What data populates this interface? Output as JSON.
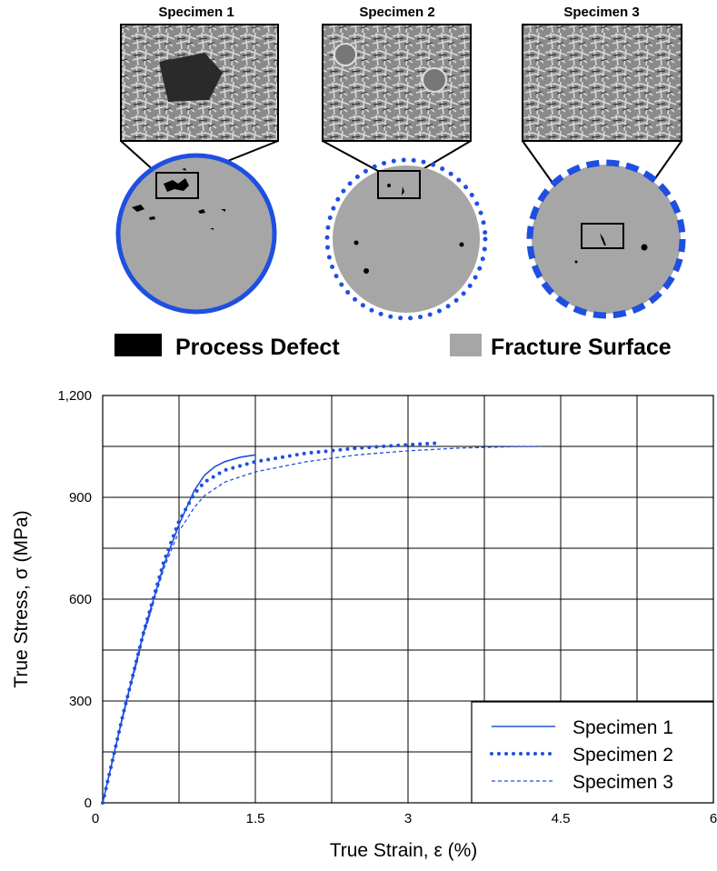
{
  "figure": {
    "specimens": [
      "Specimen 1",
      "Specimen 2",
      "Specimen 3"
    ],
    "legend": [
      "Process Defect",
      "Fracture Surface"
    ]
  },
  "chart_data": {
    "type": "line",
    "xlabel": "True Strain, ε (%)",
    "ylabel": "True Stress, σ (MPa)",
    "xlim": [
      0,
      6
    ],
    "ylim": [
      0,
      1200
    ],
    "xticks": [
      0,
      1.5,
      3,
      4.5,
      6
    ],
    "yticks": [
      0,
      300,
      600,
      900,
      {
        "value": 1200,
        "label": "1,200"
      }
    ],
    "x_minor_grid": [
      0.75,
      2.25,
      3.75,
      5.25
    ],
    "y_minor_grid": [
      150,
      450,
      750,
      1050
    ],
    "grid": true,
    "legend_position": "lower right",
    "series": [
      {
        "name": "Specimen 1",
        "color": "#1f4fe0",
        "line_style": "solid",
        "x": [
          0,
          0.2,
          0.4,
          0.6,
          0.75,
          0.9,
          1.0,
          1.1,
          1.2,
          1.35,
          1.5
        ],
        "values": [
          0,
          260,
          500,
          700,
          820,
          920,
          965,
          990,
          1005,
          1018,
          1025
        ]
      },
      {
        "name": "Specimen 2",
        "color": "#1f4fe0",
        "line_style": "dotted",
        "x": [
          0,
          0.2,
          0.4,
          0.6,
          0.75,
          0.9,
          1.0,
          1.2,
          1.5,
          2.0,
          2.5,
          3.0,
          3.3
        ],
        "values": [
          0,
          260,
          500,
          710,
          830,
          910,
          945,
          980,
          1005,
          1030,
          1045,
          1055,
          1060
        ]
      },
      {
        "name": "Specimen 3",
        "color": "#1f4fe0",
        "line_style": "dashed",
        "x": [
          0,
          0.2,
          0.4,
          0.6,
          0.75,
          0.9,
          1.0,
          1.2,
          1.5,
          2.0,
          2.5,
          3.0,
          3.5,
          4.0,
          4.3
        ],
        "values": [
          0,
          255,
          490,
          690,
          800,
          870,
          905,
          945,
          975,
          1005,
          1025,
          1037,
          1045,
          1049,
          1050
        ]
      }
    ]
  }
}
